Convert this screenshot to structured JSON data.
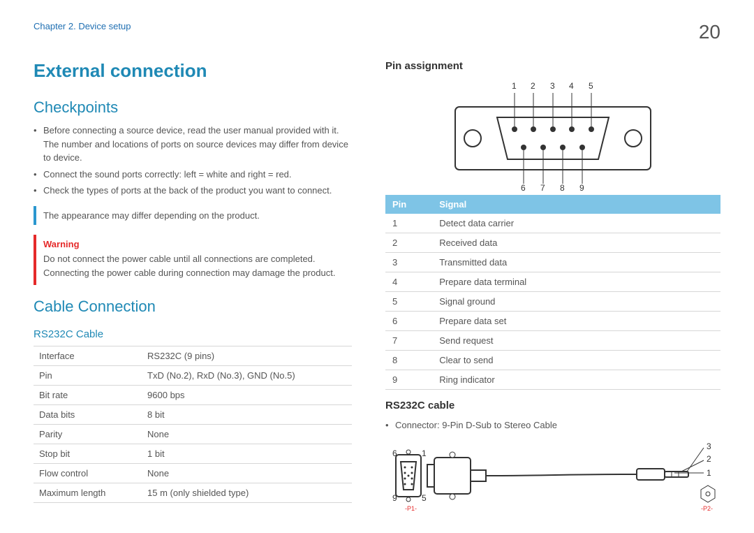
{
  "header": {
    "chapter": "Chapter 2. Device setup",
    "page": "20"
  },
  "title": "External connection",
  "checkpoints": {
    "heading": "Checkpoints",
    "items": [
      "Before connecting a source device, read the user manual provided with it. The number and locations of ports on source devices may differ from device to device.",
      "Connect the sound ports correctly: left = white and right = red.",
      "Check the types of ports at the back of the product you want to connect."
    ],
    "note": "The appearance may differ depending on the product.",
    "warning_label": "Warning",
    "warning_body": "Do not connect the power cable until all connections are completed. Connecting the power cable during connection may damage the product."
  },
  "cable": {
    "heading": "Cable Connection",
    "sub": "RS232C Cable",
    "rows": [
      [
        "Interface",
        "RS232C (9 pins)"
      ],
      [
        "Pin",
        "TxD (No.2), RxD (No.3), GND (No.5)"
      ],
      [
        "Bit rate",
        "9600 bps"
      ],
      [
        "Data bits",
        "8 bit"
      ],
      [
        "Parity",
        "None"
      ],
      [
        "Stop bit",
        "1 bit"
      ],
      [
        "Flow control",
        "None"
      ],
      [
        "Maximum length",
        "15 m (only shielded type)"
      ]
    ]
  },
  "pin_assign": {
    "heading": "Pin assignment",
    "top_labels": [
      "1",
      "2",
      "3",
      "4",
      "5"
    ],
    "bottom_labels": [
      "6",
      "7",
      "8",
      "9"
    ],
    "table_head": [
      "Pin",
      "Signal"
    ],
    "rows": [
      [
        "1",
        "Detect data carrier"
      ],
      [
        "2",
        "Received data"
      ],
      [
        "3",
        "Transmitted data"
      ],
      [
        "4",
        "Prepare data terminal"
      ],
      [
        "5",
        "Signal ground"
      ],
      [
        "6",
        "Prepare data set"
      ],
      [
        "7",
        "Send request"
      ],
      [
        "8",
        "Clear to send"
      ],
      [
        "9",
        "Ring indicator"
      ]
    ]
  },
  "cable2": {
    "heading": "RS232C cable",
    "bullet": "Connector: 9-Pin D-Sub to Stereo Cable",
    "left_labels": {
      "tl": "6",
      "tr": "1",
      "bl": "9",
      "br": "5",
      "p1": "-P1-"
    },
    "right_labels": {
      "l1": "3",
      "l2": "2",
      "l3": "1",
      "p2": "-P2-"
    }
  },
  "colors": {
    "brand": "#1f89b5",
    "link": "#1f6fb2",
    "accent": "#7ec4e6",
    "warn": "#e52a2a",
    "border": "#d6d6d6"
  }
}
